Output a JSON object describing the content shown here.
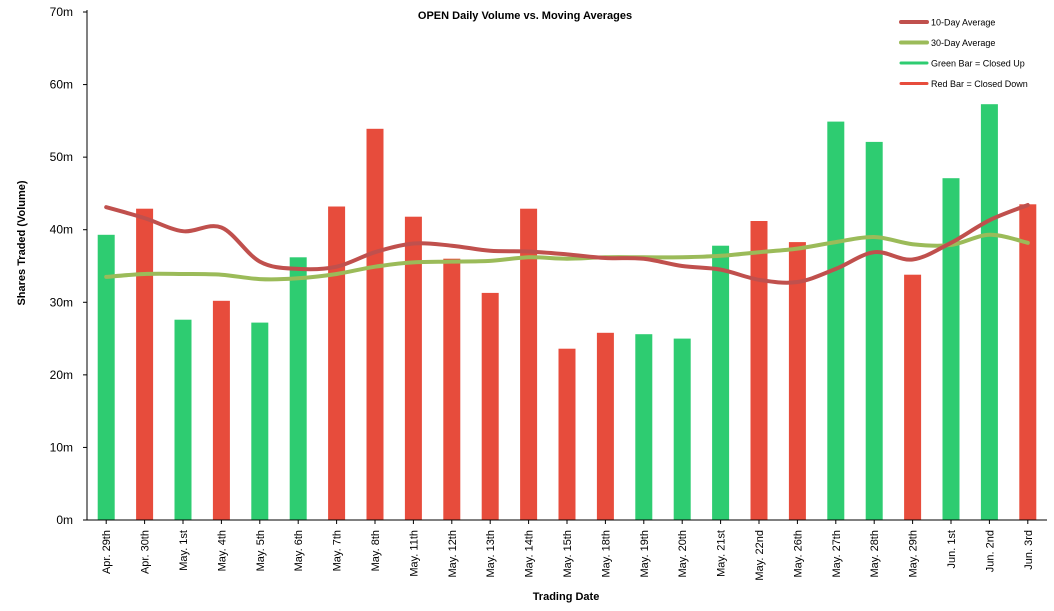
{
  "chart_data": {
    "type": "bar",
    "title": "OPEN Daily Volume vs. Moving Averages",
    "xlabel": "Trading Date",
    "ylabel": "Shares Traded (Volume)",
    "ylim": [
      0,
      70
    ],
    "yticks": [
      {
        "value": 0,
        "label": "0m"
      },
      {
        "value": 10,
        "label": "10m"
      },
      {
        "value": 20,
        "label": "20m"
      },
      {
        "value": 30,
        "label": "30m"
      },
      {
        "value": 40,
        "label": "40m"
      },
      {
        "value": 50,
        "label": "50m"
      },
      {
        "value": 60,
        "label": "60m"
      },
      {
        "value": 70,
        "label": "70m"
      }
    ],
    "grid": false,
    "legend_position": "top-right",
    "categories": [
      "Apr. 29th",
      "Apr. 30th",
      "May. 1st",
      "May. 4th",
      "May. 5th",
      "May. 6th",
      "May. 7th",
      "May. 8th",
      "May. 11th",
      "May. 12th",
      "May. 13th",
      "May. 14th",
      "May. 15th",
      "May. 18th",
      "May. 19th",
      "May. 20th",
      "May. 21st",
      "May. 22nd",
      "May. 26th",
      "May. 27th",
      "May. 28th",
      "May. 29th",
      "Jun. 1st",
      "Jun. 2nd",
      "Jun. 3rd"
    ],
    "bars": {
      "values": [
        39.3,
        42.9,
        27.6,
        30.2,
        27.2,
        36.2,
        43.2,
        53.9,
        41.8,
        36.0,
        31.3,
        42.9,
        23.6,
        25.8,
        25.6,
        25.0,
        37.8,
        41.2,
        38.3,
        54.9,
        52.1,
        33.8,
        47.1,
        57.3,
        43.5
      ],
      "direction": [
        "up",
        "down",
        "up",
        "down",
        "up",
        "up",
        "down",
        "down",
        "down",
        "down",
        "down",
        "down",
        "down",
        "down",
        "up",
        "up",
        "up",
        "down",
        "down",
        "up",
        "up",
        "down",
        "up",
        "up",
        "down"
      ]
    },
    "series": [
      {
        "name": "10-Day Average",
        "type": "line",
        "color": "#c0504d",
        "values": [
          43.1,
          41.6,
          39.8,
          40.3,
          35.6,
          34.6,
          34.9,
          36.9,
          38.1,
          37.8,
          37.1,
          37.0,
          36.6,
          36.1,
          36.0,
          35.0,
          34.5,
          33.1,
          32.8,
          34.6,
          36.9,
          35.9,
          38.2,
          41.3,
          43.4
        ]
      },
      {
        "name": "30-Day Average",
        "type": "line",
        "color": "#9bbb59",
        "values": [
          33.5,
          33.9,
          33.9,
          33.8,
          33.2,
          33.3,
          33.9,
          34.9,
          35.5,
          35.6,
          35.7,
          36.2,
          36.0,
          36.2,
          36.2,
          36.2,
          36.4,
          36.9,
          37.4,
          38.3,
          39.0,
          38.0,
          37.9,
          39.3,
          38.2
        ]
      }
    ],
    "legend": [
      {
        "label": "10-Day Average",
        "color": "#c0504d"
      },
      {
        "label": "30-Day Average",
        "color": "#9bbb59"
      },
      {
        "label": "Green Bar = Closed Up",
        "color": "#2ecc71"
      },
      {
        "label": "Red Bar = Closed Down",
        "color": "#e74c3c"
      }
    ],
    "colors": {
      "up": "#2ecc71",
      "down": "#e74c3c",
      "axis": "#000000"
    }
  }
}
